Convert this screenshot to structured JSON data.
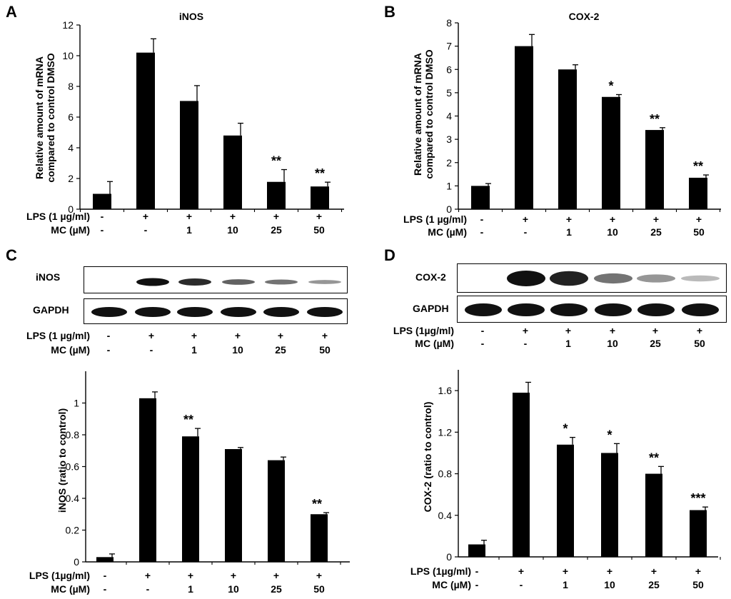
{
  "panels": {
    "A": {
      "letter": "A",
      "chart_data": {
        "type": "bar",
        "title": "iNOS",
        "ylabel": "Relative amount of mRNA compared to control DMSO",
        "ylim": [
          0,
          12
        ],
        "yticks": [
          "0",
          "2",
          "4",
          "6",
          "8",
          "10",
          "12"
        ],
        "values": [
          1.0,
          10.2,
          7.05,
          4.8,
          1.78,
          1.48
        ],
        "errors": [
          0.8,
          0.9,
          1.0,
          0.8,
          0.8,
          0.28
        ],
        "stars": [
          "",
          "",
          "",
          "",
          "**",
          "**"
        ]
      }
    },
    "B": {
      "letter": "B",
      "chart_data": {
        "type": "bar",
        "title": "COX-2",
        "ylabel": "Relative amount of mRNA compared to control DMSO",
        "ylim": [
          0,
          8
        ],
        "yticks": [
          "0",
          "1",
          "2",
          "3",
          "4",
          "5",
          "6",
          "7",
          "8"
        ],
        "values": [
          1.0,
          7.0,
          6.0,
          4.82,
          3.4,
          1.35
        ],
        "errors": [
          0.1,
          0.5,
          0.2,
          0.1,
          0.1,
          0.12
        ],
        "stars": [
          "",
          "",
          "",
          "*",
          "**",
          "**"
        ]
      }
    },
    "C": {
      "letter": "C",
      "blot_labels": [
        "iNOS",
        "GAPDH"
      ],
      "chart_data": {
        "type": "bar",
        "title": "",
        "ylabel": "iNOS (ratio to control)",
        "ylim": [
          0,
          1.2
        ],
        "yticks": [
          "0",
          "0.2",
          "0.4",
          "0.6",
          "0.8",
          "1"
        ],
        "ytick_values": [
          0,
          0.2,
          0.4,
          0.6,
          0.8,
          1.0
        ],
        "values": [
          0.03,
          1.03,
          0.79,
          0.71,
          0.64,
          0.3
        ],
        "errors": [
          0.02,
          0.04,
          0.05,
          0.01,
          0.02,
          0.01
        ],
        "stars": [
          "",
          "",
          "**",
          "",
          "",
          "**"
        ]
      }
    },
    "D": {
      "letter": "D",
      "blot_labels": [
        "COX-2",
        "GAPDH"
      ],
      "chart_data": {
        "type": "bar",
        "title": "",
        "ylabel": "COX-2 (ratio to control)",
        "ylim": [
          0,
          1.8
        ],
        "yticks": [
          "0",
          "0.4",
          "0.8",
          "1.2",
          "1.6"
        ],
        "ytick_values": [
          0,
          0.4,
          0.8,
          1.2,
          1.6
        ],
        "values": [
          0.12,
          1.58,
          1.08,
          1.0,
          0.8,
          0.45
        ],
        "errors": [
          0.04,
          0.1,
          0.07,
          0.09,
          0.07,
          0.03
        ],
        "stars": [
          "",
          "",
          "*",
          "*",
          "**",
          "***"
        ]
      }
    }
  },
  "conditions": {
    "lps_label_spaced": "LPS (1 µg/ml)",
    "lps_label_compact": "LPS (1µg/ml)",
    "mc_label": "MC (µM)",
    "lps": [
      "-",
      "+",
      "+",
      "+",
      "+",
      "+"
    ],
    "mc": [
      "-",
      "-",
      "1",
      "10",
      "25",
      "50"
    ]
  },
  "blots": {
    "iNOS": [
      0.0,
      1.0,
      0.85,
      0.55,
      0.45,
      0.25
    ],
    "COX-2C": [
      0.0,
      1.0,
      0.9,
      0.45,
      0.25,
      0.05
    ],
    "GAPDH": [
      1,
      1,
      1,
      1,
      1,
      1
    ]
  }
}
